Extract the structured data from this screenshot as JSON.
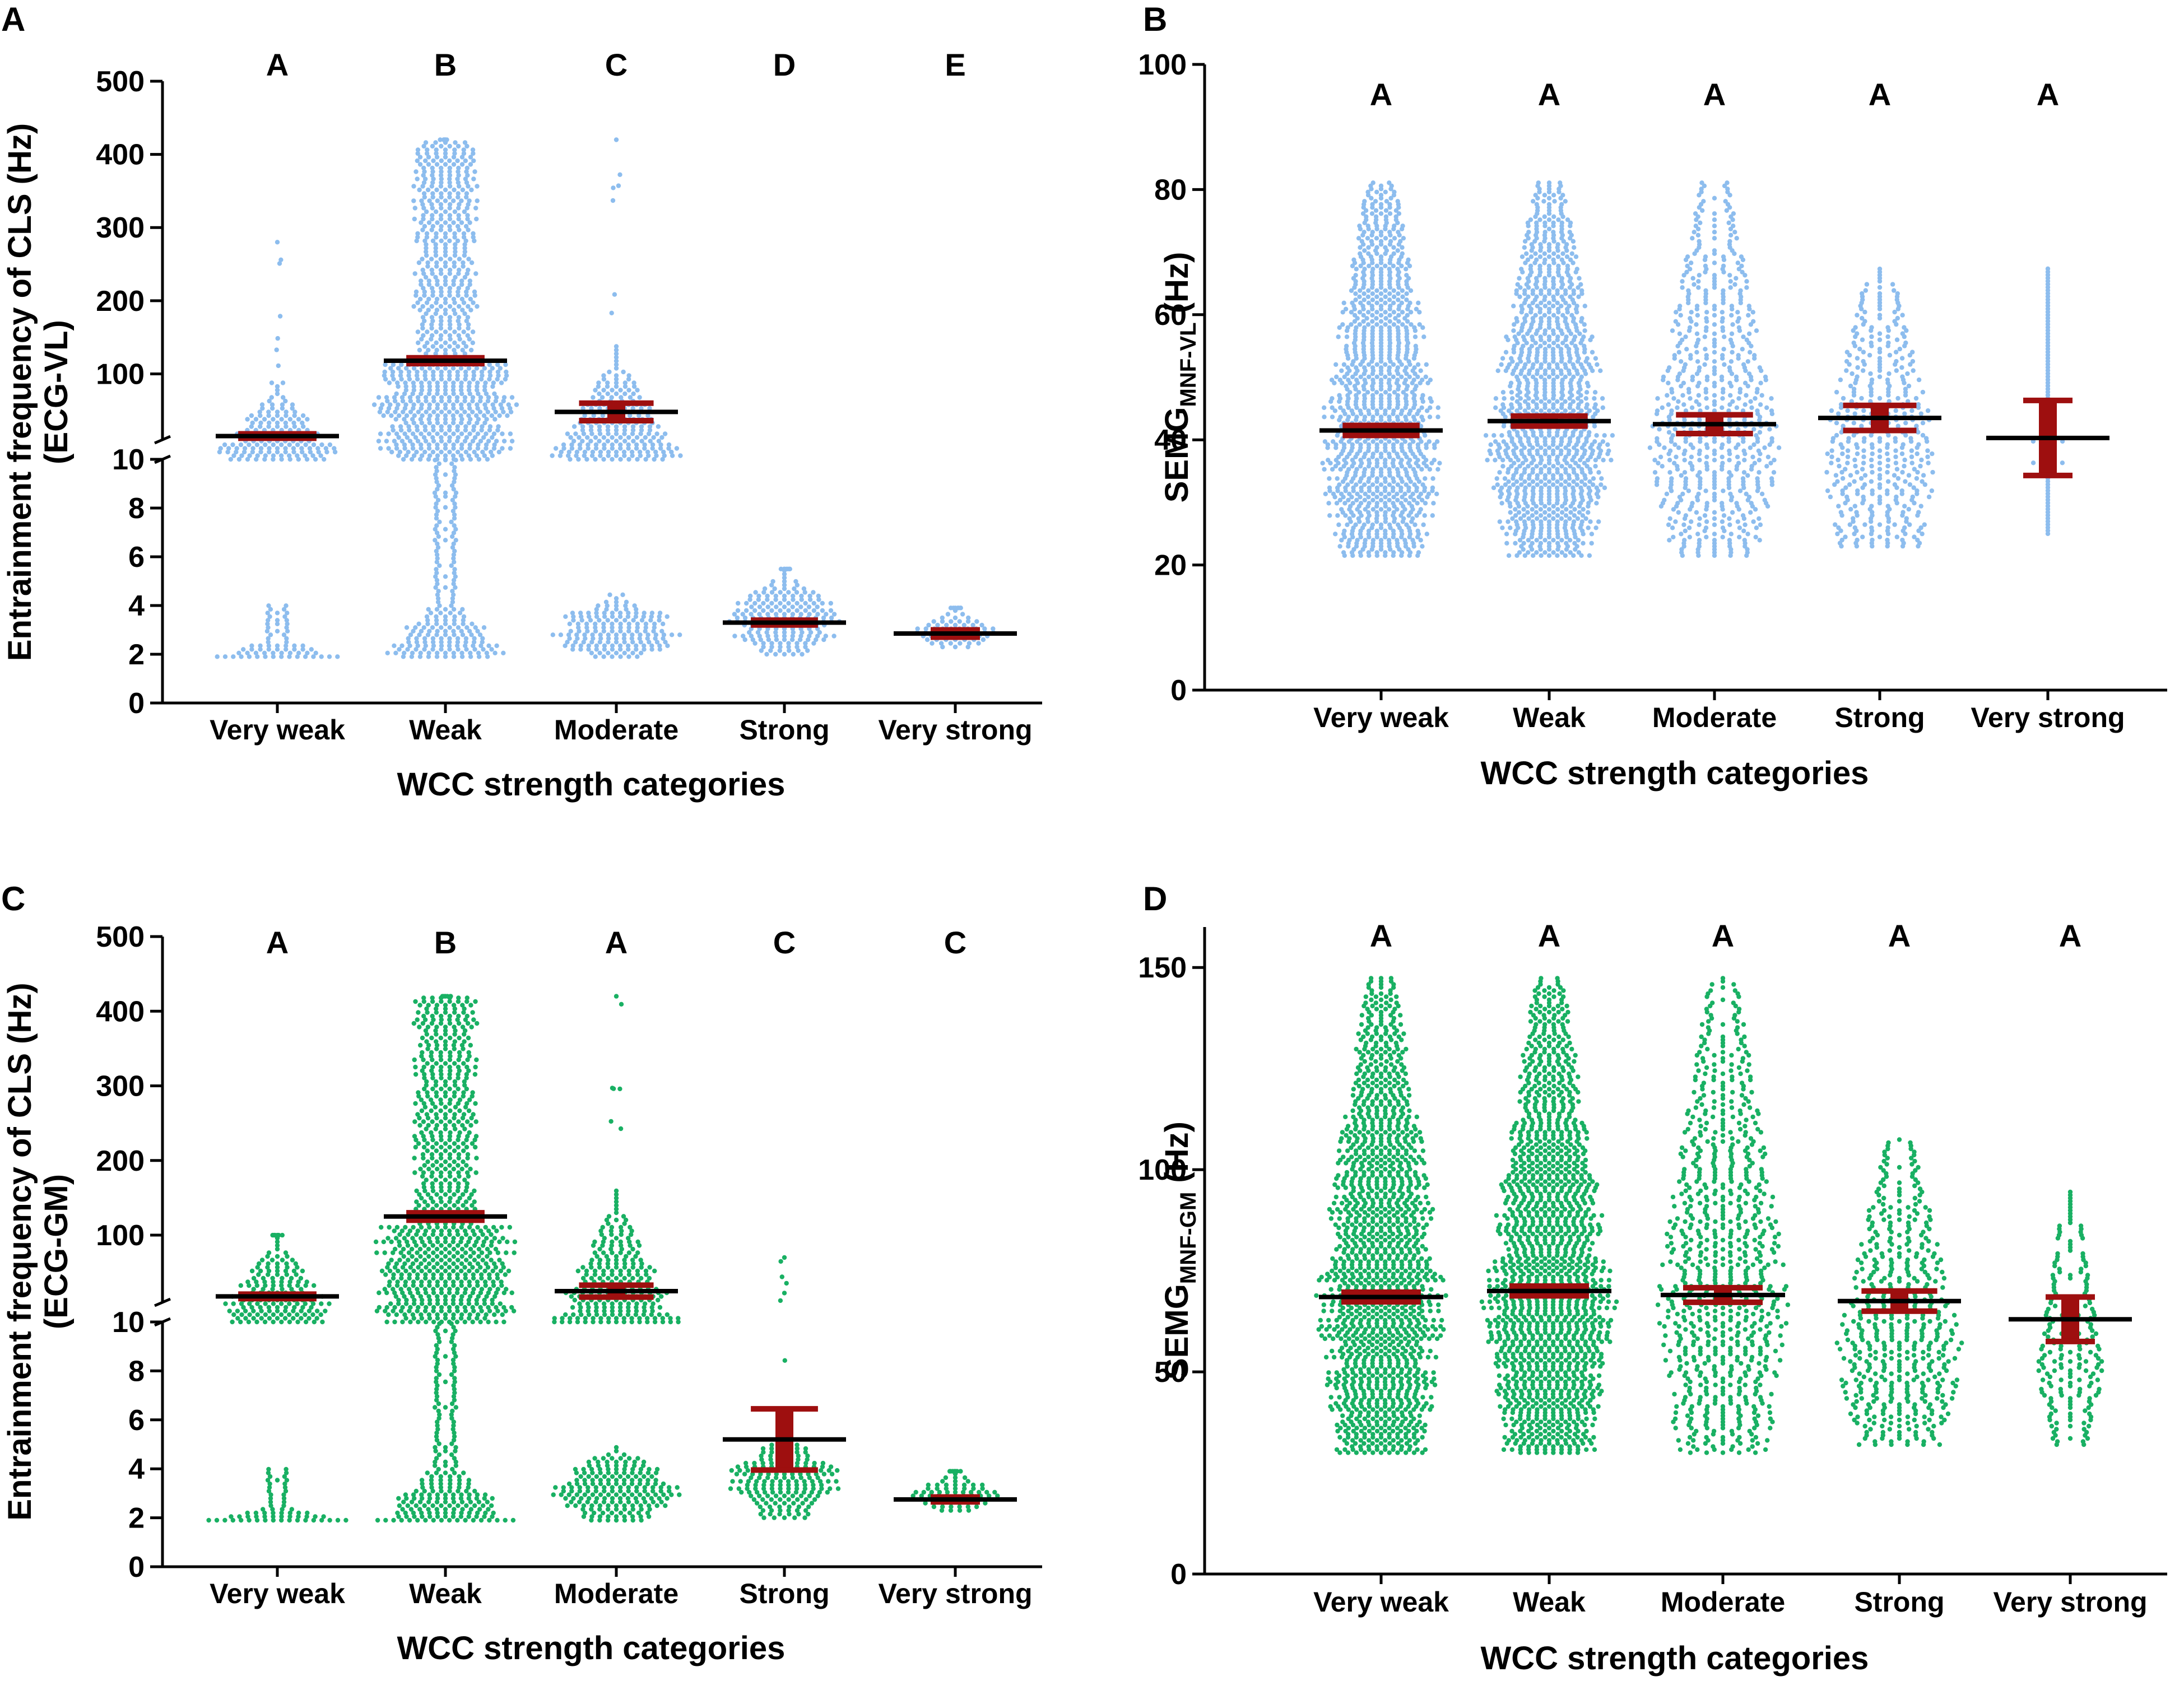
{
  "colors": {
    "blue_points": "#8dbdee",
    "green_points": "#19b063",
    "error_bar": "#9e0f0f",
    "mean_line": "#000000"
  },
  "panels": [
    {
      "letter": "A",
      "type": "broken",
      "color_key": "blue_points",
      "ylabel": "Entrainment frequency of CLS (Hz)",
      "ylabel2": "(ECG-VL)",
      "xlabel": "WCC strength categories",
      "lower_ticks": [
        "0",
        "2",
        "4",
        "6",
        "8",
        "10"
      ],
      "upper_ticks": [
        "100",
        "200",
        "300",
        "400",
        "500"
      ]
    },
    {
      "letter": "B",
      "type": "linear",
      "color_key": "blue_points",
      "ylabel_main": "SEMG",
      "ylabel_sub": "MNF-VL",
      "ylabel_tail": " (Hz)",
      "xlabel": "WCC strength categories",
      "ticks": [
        "0",
        "20",
        "40",
        "60",
        "80",
        "100"
      ]
    },
    {
      "letter": "C",
      "type": "broken",
      "color_key": "green_points",
      "ylabel": "Entrainment frequency of CLS (Hz)",
      "ylabel2": "(ECG-GM)",
      "xlabel": "WCC strength categories",
      "lower_ticks": [
        "0",
        "2",
        "4",
        "6",
        "8",
        "10"
      ],
      "upper_ticks": [
        "100",
        "200",
        "300",
        "400",
        "500"
      ]
    },
    {
      "letter": "D",
      "type": "linear",
      "color_key": "green_points",
      "ylabel_main": "SEMG",
      "ylabel_sub": "MNF-GM",
      "ylabel_tail": " (Hz)",
      "xlabel": "WCC strength categories",
      "ticks": [
        "0",
        "50",
        "100",
        "150"
      ]
    }
  ],
  "chart_data": [
    {
      "panel": "A",
      "type": "scatter",
      "title": "",
      "xlabel": "WCC strength categories",
      "ylabel": "Entrainment frequency of CLS (Hz) (ECG-VL)",
      "categories": [
        "Very weak",
        "Weak",
        "Moderate",
        "Strong",
        "Very strong"
      ],
      "significance": [
        "A",
        "B",
        "C",
        "D",
        "E"
      ],
      "y_axis": "broken",
      "ylim_lower": [
        0,
        10
      ],
      "ylim_upper": [
        10,
        500
      ],
      "series": [
        {
          "name": "Very weak",
          "mean": 15,
          "sem": 3,
          "min": 1.9,
          "max": 280,
          "dense_low": [
            1.9,
            4
          ],
          "dense_high": [
            10,
            90
          ],
          "band_width": 0.42
        },
        {
          "name": "Weak",
          "mean": 118,
          "sem": 4,
          "min": 1.9,
          "max": 420,
          "dense_low": [
            1.9,
            10
          ],
          "dense_high": [
            10,
            420
          ],
          "band_width": 0.42
        },
        {
          "name": "Moderate",
          "mean": 48,
          "sem": 12,
          "min": 1.9,
          "max": 420,
          "dense_low": [
            1.9,
            4.5
          ],
          "dense_high": [
            10,
            140
          ],
          "band_width": 0.4
        },
        {
          "name": "Strong",
          "mean": 3.3,
          "sem": 0.1,
          "min": 2.0,
          "max": 5.5,
          "dense_low": [
            2.0,
            5.5
          ],
          "dense_high": null,
          "band_width": 0.36
        },
        {
          "name": "Very strong",
          "mean": 2.85,
          "sem": 0.15,
          "min": 2.3,
          "max": 3.9,
          "dense_low": [
            2.3,
            3.9
          ],
          "dense_high": null,
          "band_width": 0.26
        }
      ]
    },
    {
      "panel": "B",
      "type": "scatter",
      "title": "",
      "xlabel": "WCC strength categories",
      "ylabel": "SEMG MNF-VL (Hz)",
      "categories": [
        "Very weak",
        "Weak",
        "Moderate",
        "Strong",
        "Very strong"
      ],
      "significance": [
        "A",
        "A",
        "A",
        "A",
        "A"
      ],
      "ylim": [
        0,
        100
      ],
      "series": [
        {
          "name": "Very weak",
          "mean": 41.5,
          "sem": 0.8,
          "min": 21.5,
          "max": 81.5,
          "band_width": 0.42
        },
        {
          "name": "Weak",
          "mean": 43,
          "sem": 0.8,
          "min": 21.5,
          "max": 81.5,
          "band_width": 0.42
        },
        {
          "name": "Moderate",
          "mean": 42.5,
          "sem": 1.5,
          "min": 21.5,
          "max": 81.5,
          "band_width": 0.42
        },
        {
          "name": "Strong",
          "mean": 43.5,
          "sem": 2,
          "min": 23,
          "max": 67.5,
          "band_width": 0.4
        },
        {
          "name": "Very strong",
          "mean": 40.3,
          "sem": 6,
          "min": 25,
          "max": 67.5,
          "band_width": 0.1
        }
      ]
    },
    {
      "panel": "C",
      "type": "scatter",
      "title": "",
      "xlabel": "WCC strength categories",
      "ylabel": "Entrainment frequency of CLS (Hz) (ECG-GM)",
      "categories": [
        "Very weak",
        "Weak",
        "Moderate",
        "Strong",
        "Very strong"
      ],
      "significance": [
        "A",
        "B",
        "A",
        "C",
        "C"
      ],
      "y_axis": "broken",
      "ylim_lower": [
        0,
        10
      ],
      "ylim_upper": [
        10,
        500
      ],
      "series": [
        {
          "name": "Very weak",
          "mean": 18,
          "sem": 3,
          "min": 1.9,
          "max": 100,
          "dense_low": [
            1.9,
            4
          ],
          "dense_high": [
            10,
            100
          ],
          "band_width": 0.42
        },
        {
          "name": "Weak",
          "mean": 125,
          "sem": 5,
          "min": 1.9,
          "max": 420,
          "dense_low": [
            1.9,
            10
          ],
          "dense_high": [
            10,
            420
          ],
          "band_width": 0.42
        },
        {
          "name": "Moderate",
          "mean": 25,
          "sem": 8,
          "min": 1.9,
          "max": 420,
          "dense_low": [
            1.9,
            5
          ],
          "dense_high": [
            10,
            160
          ],
          "band_width": 0.4
        },
        {
          "name": "Strong",
          "mean": 5.2,
          "sem": 1.25,
          "min": 2.0,
          "max": 70,
          "dense_low": [
            2.0,
            5.5
          ],
          "dense_high": null,
          "band_width": 0.36
        },
        {
          "name": "Very strong",
          "mean": 2.75,
          "sem": 0.1,
          "min": 2.3,
          "max": 3.9,
          "dense_low": [
            2.3,
            3.9
          ],
          "dense_high": null,
          "band_width": 0.26
        }
      ]
    },
    {
      "panel": "D",
      "type": "scatter",
      "title": "",
      "xlabel": "WCC strength categories",
      "ylabel": "SEMG MNF-GM (Hz)",
      "categories": [
        "Very weak",
        "Weak",
        "Moderate",
        "Strong",
        "Very strong"
      ],
      "significance": [
        "A",
        "A",
        "A",
        "A",
        "A"
      ],
      "ylim": [
        0,
        160
      ],
      "series": [
        {
          "name": "Very weak",
          "mean": 68.5,
          "sem": 1.2,
          "min": 30,
          "max": 148,
          "band_width": 0.42
        },
        {
          "name": "Weak",
          "mean": 70,
          "sem": 1.2,
          "min": 30,
          "max": 148,
          "band_width": 0.42
        },
        {
          "name": "Moderate",
          "mean": 69,
          "sem": 1.8,
          "min": 30,
          "max": 148,
          "band_width": 0.42
        },
        {
          "name": "Strong",
          "mean": 67.5,
          "sem": 2.5,
          "min": 32,
          "max": 108,
          "band_width": 0.4
        },
        {
          "name": "Very strong",
          "mean": 63,
          "sem": 5.5,
          "min": 32,
          "max": 95,
          "band_width": 0.2
        }
      ]
    }
  ]
}
